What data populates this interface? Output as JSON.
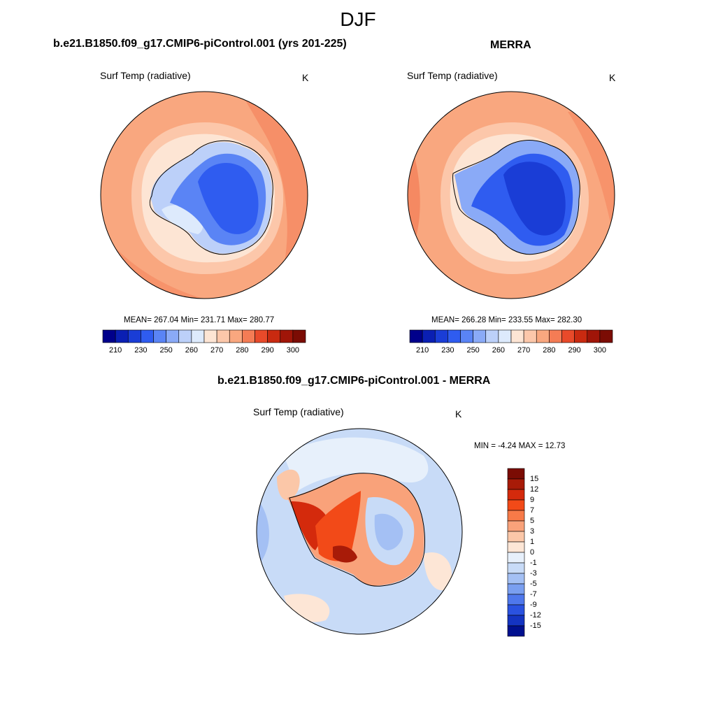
{
  "title": "DJF",
  "panels": [
    {
      "title": "b.e21.B1850.f09_g17.CMIP6-piControl.001 (yrs 201-225)",
      "variable": "Surf Temp (radiative)",
      "units": "K",
      "stats": "MEAN= 267.04  Min= 231.71  Max= 280.77",
      "colorbar": {
        "ticks": [
          "210",
          "230",
          "250",
          "260",
          "270",
          "280",
          "290",
          "300"
        ],
        "colors": [
          "#00008b",
          "#0a1fb3",
          "#1a3dd6",
          "#2f5cf0",
          "#5a84f5",
          "#8aaaf7",
          "#bcd0f9",
          "#ddeafc",
          "#fde5d4",
          "#fcc7aa",
          "#f9a77f",
          "#f47c55",
          "#e84a2a",
          "#c92a10",
          "#a01508",
          "#7b0c04"
        ]
      }
    },
    {
      "title": "MERRA",
      "variable": "Surf Temp (radiative)",
      "units": "K",
      "stats": "MEAN= 266.28  Min= 233.55  Max= 282.30",
      "colorbar": {
        "ticks": [
          "210",
          "230",
          "250",
          "260",
          "270",
          "280",
          "290",
          "300"
        ],
        "colors": [
          "#00008b",
          "#0a1fb3",
          "#1a3dd6",
          "#2f5cf0",
          "#5a84f5",
          "#8aaaf7",
          "#bcd0f9",
          "#ddeafc",
          "#fde5d4",
          "#fcc7aa",
          "#f9a77f",
          "#f47c55",
          "#e84a2a",
          "#c92a10",
          "#a01508",
          "#7b0c04"
        ]
      }
    },
    {
      "title": "b.e21.B1850.f09_g17.CMIP6-piControl.001 - MERRA",
      "variable": "Surf Temp (radiative)",
      "units": "K",
      "stats": "MIN =  -4.24 MAX =  12.73",
      "colorbar": {
        "ticks": [
          "15",
          "12",
          "9",
          "7",
          "5",
          "3",
          "1",
          "0",
          "-1",
          "-3",
          "-5",
          "-7",
          "-9",
          "-12",
          "-15"
        ],
        "colors": [
          "#7b0c04",
          "#a81b08",
          "#d42a0c",
          "#f24a18",
          "#f77a48",
          "#f9a27a",
          "#fbc7a8",
          "#fde6d6",
          "#e7f0fb",
          "#c8dbf7",
          "#a4c0f4",
          "#7a9ff0",
          "#4f78ec",
          "#2a52e0",
          "#1434c2",
          "#00108f"
        ]
      }
    }
  ]
}
